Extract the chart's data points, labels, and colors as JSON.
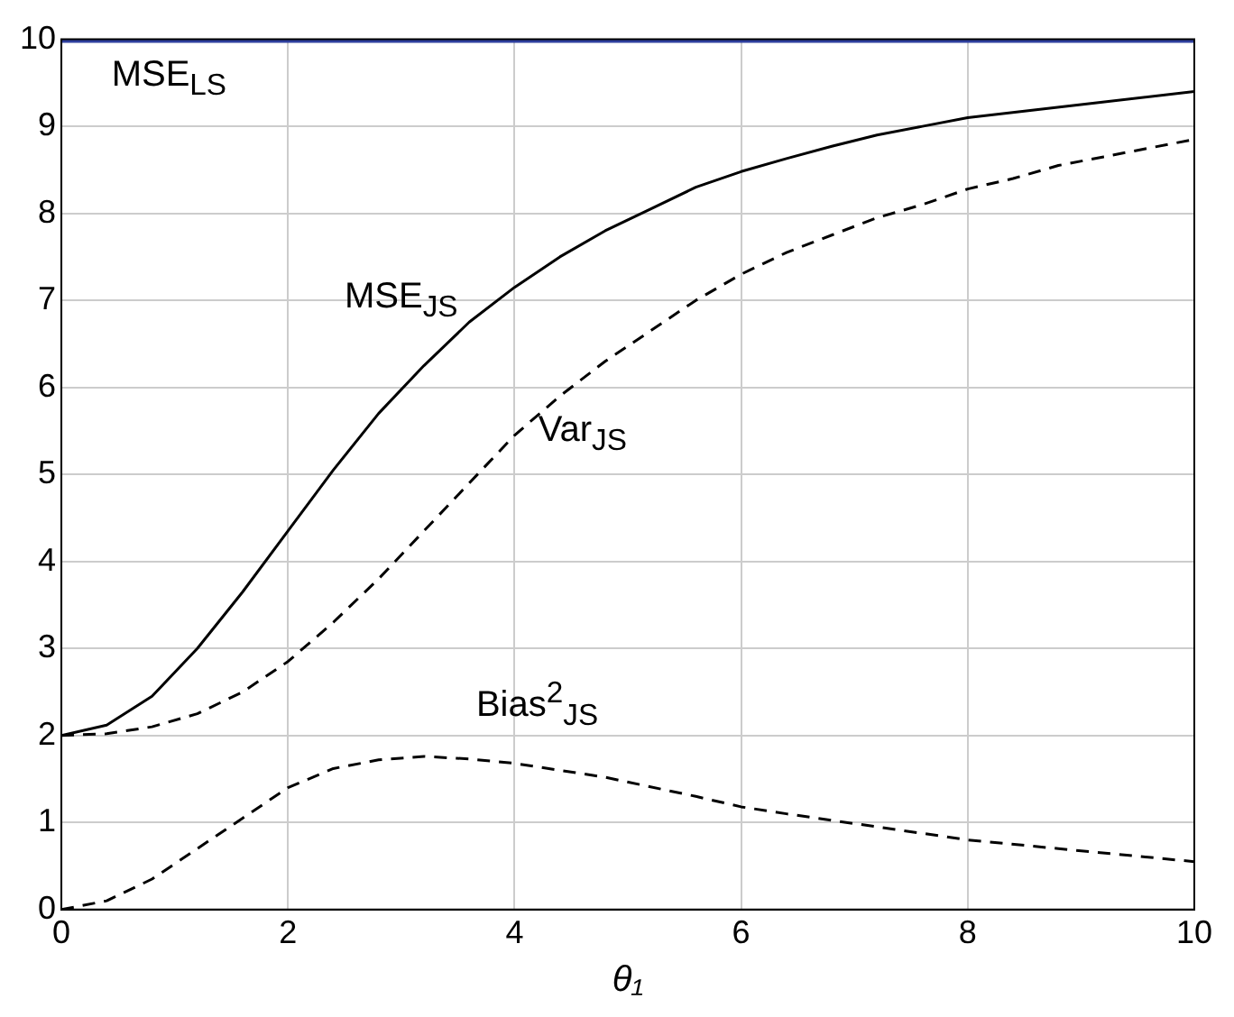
{
  "chart_data": {
    "type": "line",
    "xlabel": "θ₁",
    "xlim": [
      0,
      10
    ],
    "ylim": [
      0,
      10
    ],
    "xticks": [
      0,
      2,
      4,
      6,
      8,
      10
    ],
    "yticks": [
      0,
      1,
      2,
      3,
      4,
      5,
      6,
      7,
      8,
      9,
      10
    ],
    "grid": true,
    "legend": false,
    "marker": "none",
    "series": [
      {
        "name": "MSE$_{LS}$",
        "color": "#2e3f9e",
        "x": [
          0,
          10
        ],
        "values": [
          10,
          10
        ],
        "line_style": "solid"
      },
      {
        "name": "MSE$_{JS}$",
        "color": "#000000",
        "x": [
          0,
          0.4,
          0.8,
          1.2,
          1.6,
          2,
          2.4,
          2.8,
          3.2,
          3.6,
          4,
          4.4,
          4.8,
          5.2,
          5.6,
          6,
          6.4,
          6.8,
          7.2,
          7.6,
          8,
          9,
          10
        ],
        "values": [
          2,
          2.12,
          2.45,
          3.0,
          3.65,
          4.35,
          5.05,
          5.7,
          6.25,
          6.75,
          7.15,
          7.5,
          7.8,
          8.05,
          8.3,
          8.48,
          8.63,
          8.77,
          8.9,
          9.0,
          9.1,
          9.25,
          9.4
        ],
        "line_style": "solid"
      },
      {
        "name": "Var$_{JS}$",
        "color": "#000000",
        "x": [
          0,
          0.4,
          0.8,
          1.2,
          1.6,
          2,
          2.4,
          2.8,
          3.2,
          3.6,
          4,
          4.4,
          4.8,
          5.2,
          5.6,
          6,
          6.4,
          6.8,
          7.2,
          7.6,
          8,
          8.4,
          8.8,
          9.2,
          9.6,
          10
        ],
        "values": [
          2,
          2.02,
          2.1,
          2.25,
          2.5,
          2.85,
          3.3,
          3.8,
          4.35,
          4.9,
          5.45,
          5.9,
          6.3,
          6.65,
          7.0,
          7.3,
          7.55,
          7.75,
          7.95,
          8.1,
          8.28,
          8.4,
          8.55,
          8.65,
          8.75,
          8.85
        ],
        "line_style": "dashed"
      },
      {
        "name": "Bias$^{2}$$_{JS}$",
        "color": "#000000",
        "x": [
          0,
          0.4,
          0.8,
          1.2,
          1.6,
          2,
          2.4,
          2.8,
          3.2,
          3.6,
          4,
          4.8,
          5.6,
          6,
          6.4,
          7.2,
          8,
          8.8,
          10
        ],
        "values": [
          0,
          0.1,
          0.35,
          0.7,
          1.05,
          1.4,
          1.62,
          1.72,
          1.76,
          1.73,
          1.68,
          1.52,
          1.3,
          1.18,
          1.1,
          0.95,
          0.8,
          0.7,
          0.55
        ],
        "line_style": "dashed"
      }
    ]
  }
}
